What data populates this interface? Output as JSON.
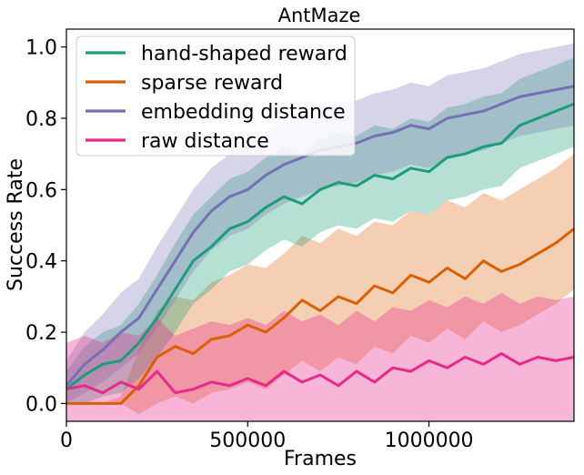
{
  "chart_data": {
    "type": "line",
    "title": "AntMaze",
    "xlabel": "Frames",
    "ylabel": "Success Rate",
    "xlim": [
      0,
      1400000
    ],
    "ylim": [
      -0.05,
      1.05
    ],
    "xticks": [
      0,
      500000,
      1000000
    ],
    "xtick_labels": [
      "0",
      "500000",
      "1000000"
    ],
    "yticks": [
      0.0,
      0.2,
      0.4,
      0.6,
      0.8,
      1.0
    ],
    "ytick_labels": [
      "0.0",
      "0.2",
      "0.4",
      "0.6",
      "0.8",
      "1.0"
    ],
    "grid": false,
    "legend": "top-left",
    "x": [
      0,
      50000,
      100000,
      150000,
      200000,
      250000,
      300000,
      350000,
      400000,
      450000,
      500000,
      550000,
      600000,
      650000,
      700000,
      750000,
      800000,
      850000,
      900000,
      950000,
      1000000,
      1050000,
      1100000,
      1150000,
      1200000,
      1250000,
      1300000,
      1350000,
      1400000
    ],
    "series": [
      {
        "name": "hand-shaped reward",
        "color": "#1b9e77",
        "values": [
          0.04,
          0.08,
          0.11,
          0.12,
          0.17,
          0.24,
          0.32,
          0.4,
          0.44,
          0.49,
          0.51,
          0.55,
          0.58,
          0.56,
          0.6,
          0.62,
          0.61,
          0.64,
          0.63,
          0.66,
          0.65,
          0.69,
          0.7,
          0.72,
          0.73,
          0.78,
          0.8,
          0.82,
          0.84
        ],
        "lower": [
          0.0,
          0.0,
          0.02,
          0.03,
          0.07,
          0.13,
          0.2,
          0.28,
          0.32,
          0.37,
          0.39,
          0.43,
          0.46,
          0.44,
          0.48,
          0.5,
          0.49,
          0.52,
          0.51,
          0.54,
          0.53,
          0.57,
          0.58,
          0.6,
          0.61,
          0.66,
          0.68,
          0.7,
          0.72
        ],
        "upper": [
          0.09,
          0.16,
          0.2,
          0.22,
          0.28,
          0.36,
          0.45,
          0.53,
          0.58,
          0.63,
          0.65,
          0.69,
          0.72,
          0.7,
          0.74,
          0.76,
          0.75,
          0.78,
          0.77,
          0.8,
          0.79,
          0.83,
          0.84,
          0.86,
          0.87,
          0.91,
          0.93,
          0.95,
          0.97
        ]
      },
      {
        "name": "sparse reward",
        "color": "#d95f02",
        "values": [
          0.0,
          0.0,
          0.0,
          0.0,
          0.05,
          0.13,
          0.16,
          0.14,
          0.18,
          0.19,
          0.22,
          0.2,
          0.24,
          0.29,
          0.26,
          0.3,
          0.28,
          0.33,
          0.31,
          0.36,
          0.34,
          0.38,
          0.35,
          0.4,
          0.37,
          0.39,
          0.42,
          0.45,
          0.49
        ],
        "lower": [
          0.0,
          0.0,
          0.0,
          0.0,
          -0.03,
          0.0,
          0.02,
          0.0,
          0.03,
          0.04,
          0.06,
          0.04,
          0.08,
          0.12,
          0.09,
          0.13,
          0.11,
          0.16,
          0.14,
          0.19,
          0.17,
          0.21,
          0.18,
          0.23,
          0.2,
          0.22,
          0.25,
          0.28,
          0.32
        ],
        "upper": [
          0.0,
          0.0,
          0.0,
          0.02,
          0.15,
          0.26,
          0.3,
          0.29,
          0.34,
          0.36,
          0.39,
          0.38,
          0.42,
          0.47,
          0.45,
          0.49,
          0.47,
          0.51,
          0.5,
          0.54,
          0.53,
          0.57,
          0.55,
          0.59,
          0.57,
          0.6,
          0.63,
          0.66,
          0.7
        ]
      },
      {
        "name": "embedding distance",
        "color": "#7570b3",
        "values": [
          0.05,
          0.11,
          0.15,
          0.2,
          0.24,
          0.32,
          0.4,
          0.48,
          0.54,
          0.58,
          0.6,
          0.64,
          0.67,
          0.69,
          0.71,
          0.72,
          0.73,
          0.75,
          0.76,
          0.78,
          0.77,
          0.8,
          0.81,
          0.82,
          0.84,
          0.86,
          0.87,
          0.88,
          0.89
        ],
        "lower": [
          0.0,
          0.03,
          0.06,
          0.1,
          0.14,
          0.21,
          0.29,
          0.37,
          0.43,
          0.47,
          0.49,
          0.53,
          0.56,
          0.58,
          0.6,
          0.61,
          0.62,
          0.64,
          0.65,
          0.67,
          0.66,
          0.69,
          0.7,
          0.71,
          0.73,
          0.75,
          0.76,
          0.77,
          0.78
        ],
        "upper": [
          0.12,
          0.2,
          0.25,
          0.31,
          0.35,
          0.44,
          0.52,
          0.6,
          0.66,
          0.7,
          0.72,
          0.76,
          0.79,
          0.81,
          0.83,
          0.84,
          0.85,
          0.87,
          0.88,
          0.9,
          0.89,
          0.92,
          0.93,
          0.94,
          0.96,
          0.98,
          0.99,
          1.0,
          1.01
        ]
      },
      {
        "name": "raw distance",
        "color": "#e7298a",
        "values": [
          0.04,
          0.05,
          0.03,
          0.06,
          0.04,
          0.09,
          0.03,
          0.04,
          0.06,
          0.05,
          0.07,
          0.05,
          0.09,
          0.06,
          0.08,
          0.05,
          0.09,
          0.06,
          0.1,
          0.09,
          0.12,
          0.1,
          0.13,
          0.11,
          0.14,
          0.11,
          0.13,
          0.12,
          0.13
        ],
        "lower": [
          -0.05,
          -0.05,
          -0.05,
          -0.05,
          -0.05,
          -0.05,
          -0.05,
          -0.05,
          -0.05,
          -0.05,
          -0.05,
          -0.05,
          -0.05,
          -0.05,
          -0.05,
          -0.05,
          -0.05,
          -0.05,
          -0.05,
          -0.05,
          -0.05,
          -0.05,
          -0.05,
          -0.05,
          -0.05,
          -0.05,
          -0.05,
          -0.05,
          -0.05
        ],
        "upper": [
          0.17,
          0.19,
          0.17,
          0.2,
          0.19,
          0.24,
          0.19,
          0.21,
          0.23,
          0.22,
          0.24,
          0.22,
          0.26,
          0.23,
          0.25,
          0.22,
          0.26,
          0.23,
          0.27,
          0.26,
          0.29,
          0.27,
          0.3,
          0.28,
          0.31,
          0.28,
          0.3,
          0.29,
          0.3
        ]
      }
    ]
  }
}
